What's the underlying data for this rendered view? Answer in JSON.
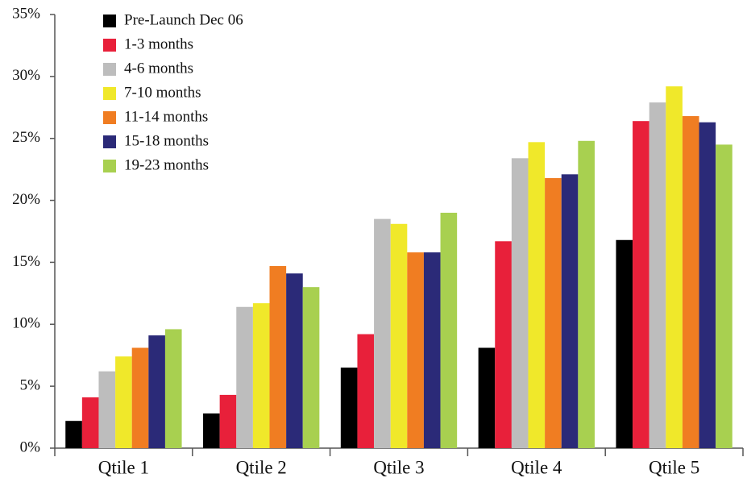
{
  "chart_data": {
    "type": "bar",
    "categories": [
      "Qtile 1",
      "Qtile 2",
      "Qtile 3",
      "Qtile 4",
      "Qtile 5"
    ],
    "series": [
      {
        "name": "Pre-Launch Dec 06",
        "color": "#000000",
        "values": [
          2.2,
          2.8,
          6.5,
          8.1,
          16.8
        ]
      },
      {
        "name": "1-3 months",
        "color": "#e8203a",
        "values": [
          4.1,
          4.3,
          9.2,
          16.7,
          26.4
        ]
      },
      {
        "name": "4-6 months",
        "color": "#bdbdbd",
        "values": [
          6.2,
          11.4,
          18.5,
          23.4,
          27.9
        ]
      },
      {
        "name": "7-10 months",
        "color": "#f0e82a",
        "values": [
          7.4,
          11.7,
          18.1,
          24.7,
          29.2
        ]
      },
      {
        "name": "11-14 months",
        "color": "#f07d22",
        "values": [
          8.1,
          14.7,
          15.8,
          21.8,
          26.8
        ]
      },
      {
        "name": "15-18 months",
        "color": "#2b2a78",
        "values": [
          9.1,
          14.1,
          15.8,
          22.1,
          26.3
        ]
      },
      {
        "name": "19-23 months",
        "color": "#a8d050",
        "values": [
          9.6,
          13.0,
          19.0,
          24.8,
          24.5
        ]
      }
    ],
    "ylim": [
      0,
      35
    ],
    "yticks": [
      {
        "value": 0,
        "label": "0%"
      },
      {
        "value": 5,
        "label": "5%"
      },
      {
        "value": 10,
        "label": "10%"
      },
      {
        "value": 15,
        "label": "15%"
      },
      {
        "value": 20,
        "label": "20%"
      },
      {
        "value": 25,
        "label": "25%"
      },
      {
        "value": 30,
        "label": "30%"
      },
      {
        "value": 35,
        "label": "35%"
      }
    ],
    "legend": "upper left",
    "grid": false
  }
}
